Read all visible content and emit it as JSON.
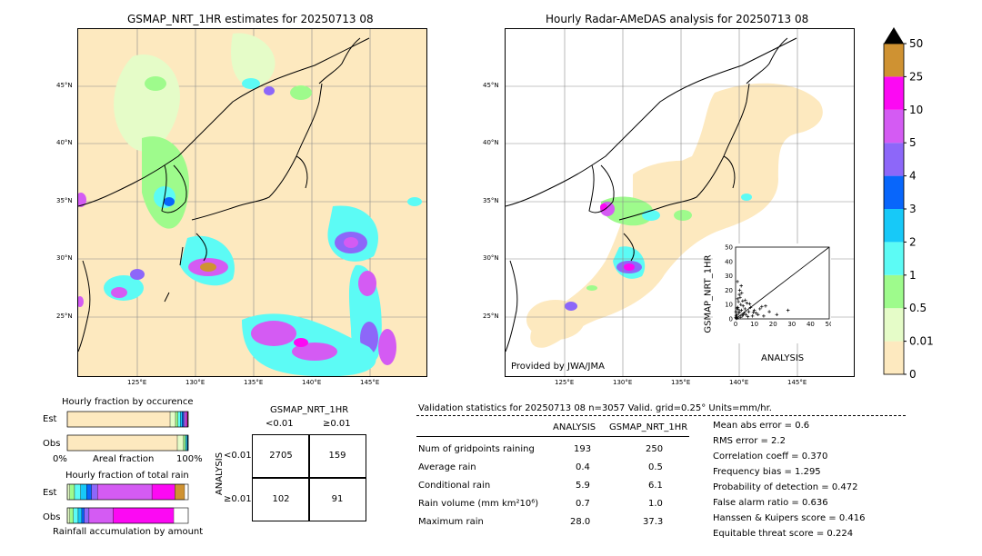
{
  "left_map": {
    "title": "GSMAP_NRT_1HR estimates for 20250713 08",
    "lat_labels": [
      "45°N",
      "40°N",
      "35°N",
      "30°N",
      "25°N"
    ],
    "lon_labels": [
      "125°E",
      "130°E",
      "135°E",
      "140°E",
      "145°E"
    ]
  },
  "right_map": {
    "title": "Hourly Radar-AMeDAS analysis for 20250713 08",
    "lat_labels": [
      "45°N",
      "40°N",
      "35°N",
      "30°N",
      "25°N"
    ],
    "lon_labels": [
      "125°E",
      "130°E",
      "135°E",
      "140°E",
      "145°E"
    ],
    "credit": "Provided by JWA/JMA"
  },
  "colorbar": {
    "labels": [
      "0",
      "0.01",
      "0.5",
      "1",
      "2",
      "3",
      "4",
      "5",
      "10",
      "25",
      "50"
    ],
    "colors": [
      "#fde9bf",
      "#e5fcc8",
      "#9efb8c",
      "#5cfbf5",
      "#17c9f8",
      "#0866fb",
      "#8d67f9",
      "#d45bf3",
      "#fc09f3",
      "#cf9232"
    ],
    "over_color": "#000000"
  },
  "chart_data": [
    {
      "type": "scatter",
      "title": "",
      "xlabel": "ANALYSIS",
      "ylabel": "GSMAP_NRT_1HR",
      "xlim": [
        0,
        50
      ],
      "ylim": [
        0,
        50
      ],
      "ticks": [
        "0",
        "10",
        "20",
        "30",
        "40",
        "50"
      ],
      "x": [
        0.4,
        0.8,
        1.2,
        1.5,
        2.0,
        2.4,
        2.8,
        3.1,
        3.5,
        4.0,
        4.5,
        5.0,
        5.5,
        6.0,
        7.0,
        8.0,
        9.0,
        10.0,
        11.0,
        12.0,
        13.0,
        15.0,
        16.0,
        18.0,
        22.0,
        28.0,
        1.0,
        2.0,
        3.0,
        0.5,
        0.3,
        1.8,
        2.5,
        4.2,
        6.5,
        0.2,
        0.9,
        1.4,
        3.8,
        7.5,
        0.6,
        2.2,
        5.2,
        9.5,
        14.0,
        0.1,
        1.1,
        3.3
      ],
      "y": [
        0.3,
        3.0,
        8.0,
        12.0,
        5.0,
        15.0,
        10.0,
        6.0,
        2.0,
        9.0,
        4.0,
        7.0,
        3.0,
        11.0,
        5.0,
        8.0,
        2.0,
        6.0,
        4.0,
        3.0,
        7.0,
        2.0,
        9.0,
        5.0,
        3.0,
        6.0,
        26.0,
        17.0,
        23.0,
        1.0,
        2.0,
        4.0,
        1.0,
        3.0,
        1.5,
        5.0,
        0.5,
        6.5,
        12.5,
        10.5,
        7.5,
        20.0,
        13.0,
        4.5,
        8.5,
        0.8,
        14.0,
        18.0
      ]
    },
    {
      "type": "bar",
      "title": "Hourly fraction by occurence",
      "categories": [
        "Est",
        "Obs"
      ],
      "xlabel": "Areal fraction",
      "tick_labels": [
        "0%",
        "100%"
      ],
      "colors": [
        "#fde9bf",
        "#e5fcc8",
        "#9efb8c",
        "#5cfbf5",
        "#17c9f8",
        "#0866fb",
        "#8d67f9",
        "#d45bf3",
        "#fc09f3",
        "#cf9232"
      ],
      "series": [
        {
          "values": [
            0.85,
            0.91
          ]
        },
        {
          "values": [
            0.045,
            0.05
          ]
        },
        {
          "values": [
            0.02,
            0.015
          ]
        },
        {
          "values": [
            0.02,
            0.01
          ]
        },
        {
          "values": [
            0.015,
            0.008
          ]
        },
        {
          "values": [
            0.012,
            0.004
          ]
        },
        {
          "values": [
            0.01,
            0.002
          ]
        },
        {
          "values": [
            0.015,
            0.001
          ]
        },
        {
          "values": [
            0.008,
            0.0
          ]
        },
        {
          "values": [
            0.005,
            0.0
          ]
        }
      ]
    },
    {
      "type": "bar",
      "title": "Hourly fraction of total rain",
      "categories": [
        "Est",
        "Obs"
      ],
      "xlabel": "Rainfall accumulation by amount",
      "colors": [
        "#fde9bf",
        "#e5fcc8",
        "#9efb8c",
        "#5cfbf5",
        "#17c9f8",
        "#0866fb",
        "#8d67f9",
        "#d45bf3",
        "#fc09f3",
        "#cf9232"
      ],
      "series": [
        {
          "values": [
            0.0,
            0.0
          ]
        },
        {
          "values": [
            0.02,
            0.02
          ]
        },
        {
          "values": [
            0.04,
            0.03
          ]
        },
        {
          "values": [
            0.05,
            0.04
          ]
        },
        {
          "values": [
            0.05,
            0.03
          ]
        },
        {
          "values": [
            0.04,
            0.02
          ]
        },
        {
          "values": [
            0.05,
            0.04
          ]
        },
        {
          "values": [
            0.45,
            0.2
          ]
        },
        {
          "values": [
            0.19,
            0.5
          ]
        },
        {
          "values": [
            0.08,
            0.0
          ]
        }
      ]
    }
  ],
  "contingency": {
    "title": "GSMAP_NRT_1HR",
    "col_labels": [
      "<0.01",
      "≥0.01"
    ],
    "row_labels": [
      "<0.01",
      "≥0.01"
    ],
    "axis_label": "ANALYSIS",
    "values": [
      [
        "2705",
        "159"
      ],
      [
        "102",
        "91"
      ]
    ]
  },
  "validation": {
    "header": "Validation statistics for 20250713 08  n=3057 Valid. grid=0.25° Units=mm/hr.",
    "col_analysis": "ANALYSIS",
    "col_gsmap": "GSMAP_NRT_1HR",
    "rows": [
      {
        "label": "Num of gridpoints raining",
        "analysis": "193",
        "gsmap": "250"
      },
      {
        "label": "Average rain",
        "analysis": "0.4",
        "gsmap": "0.5"
      },
      {
        "label": "Conditional rain",
        "analysis": "5.9",
        "gsmap": "6.1"
      },
      {
        "label": "Rain volume (mm km²10⁶)",
        "analysis": "0.7",
        "gsmap": "1.0"
      },
      {
        "label": "Maximum rain",
        "analysis": "28.0",
        "gsmap": "37.3"
      }
    ],
    "scores": [
      "Mean abs error =    0.6",
      "RMS error =    2.2",
      "Correlation coeff =  0.370",
      "Frequency bias =  1.295",
      "Probability of detection =  0.472",
      "False alarm ratio =  0.636",
      "Hanssen & Kuipers score =  0.416",
      "Equitable threat score =  0.224"
    ]
  }
}
